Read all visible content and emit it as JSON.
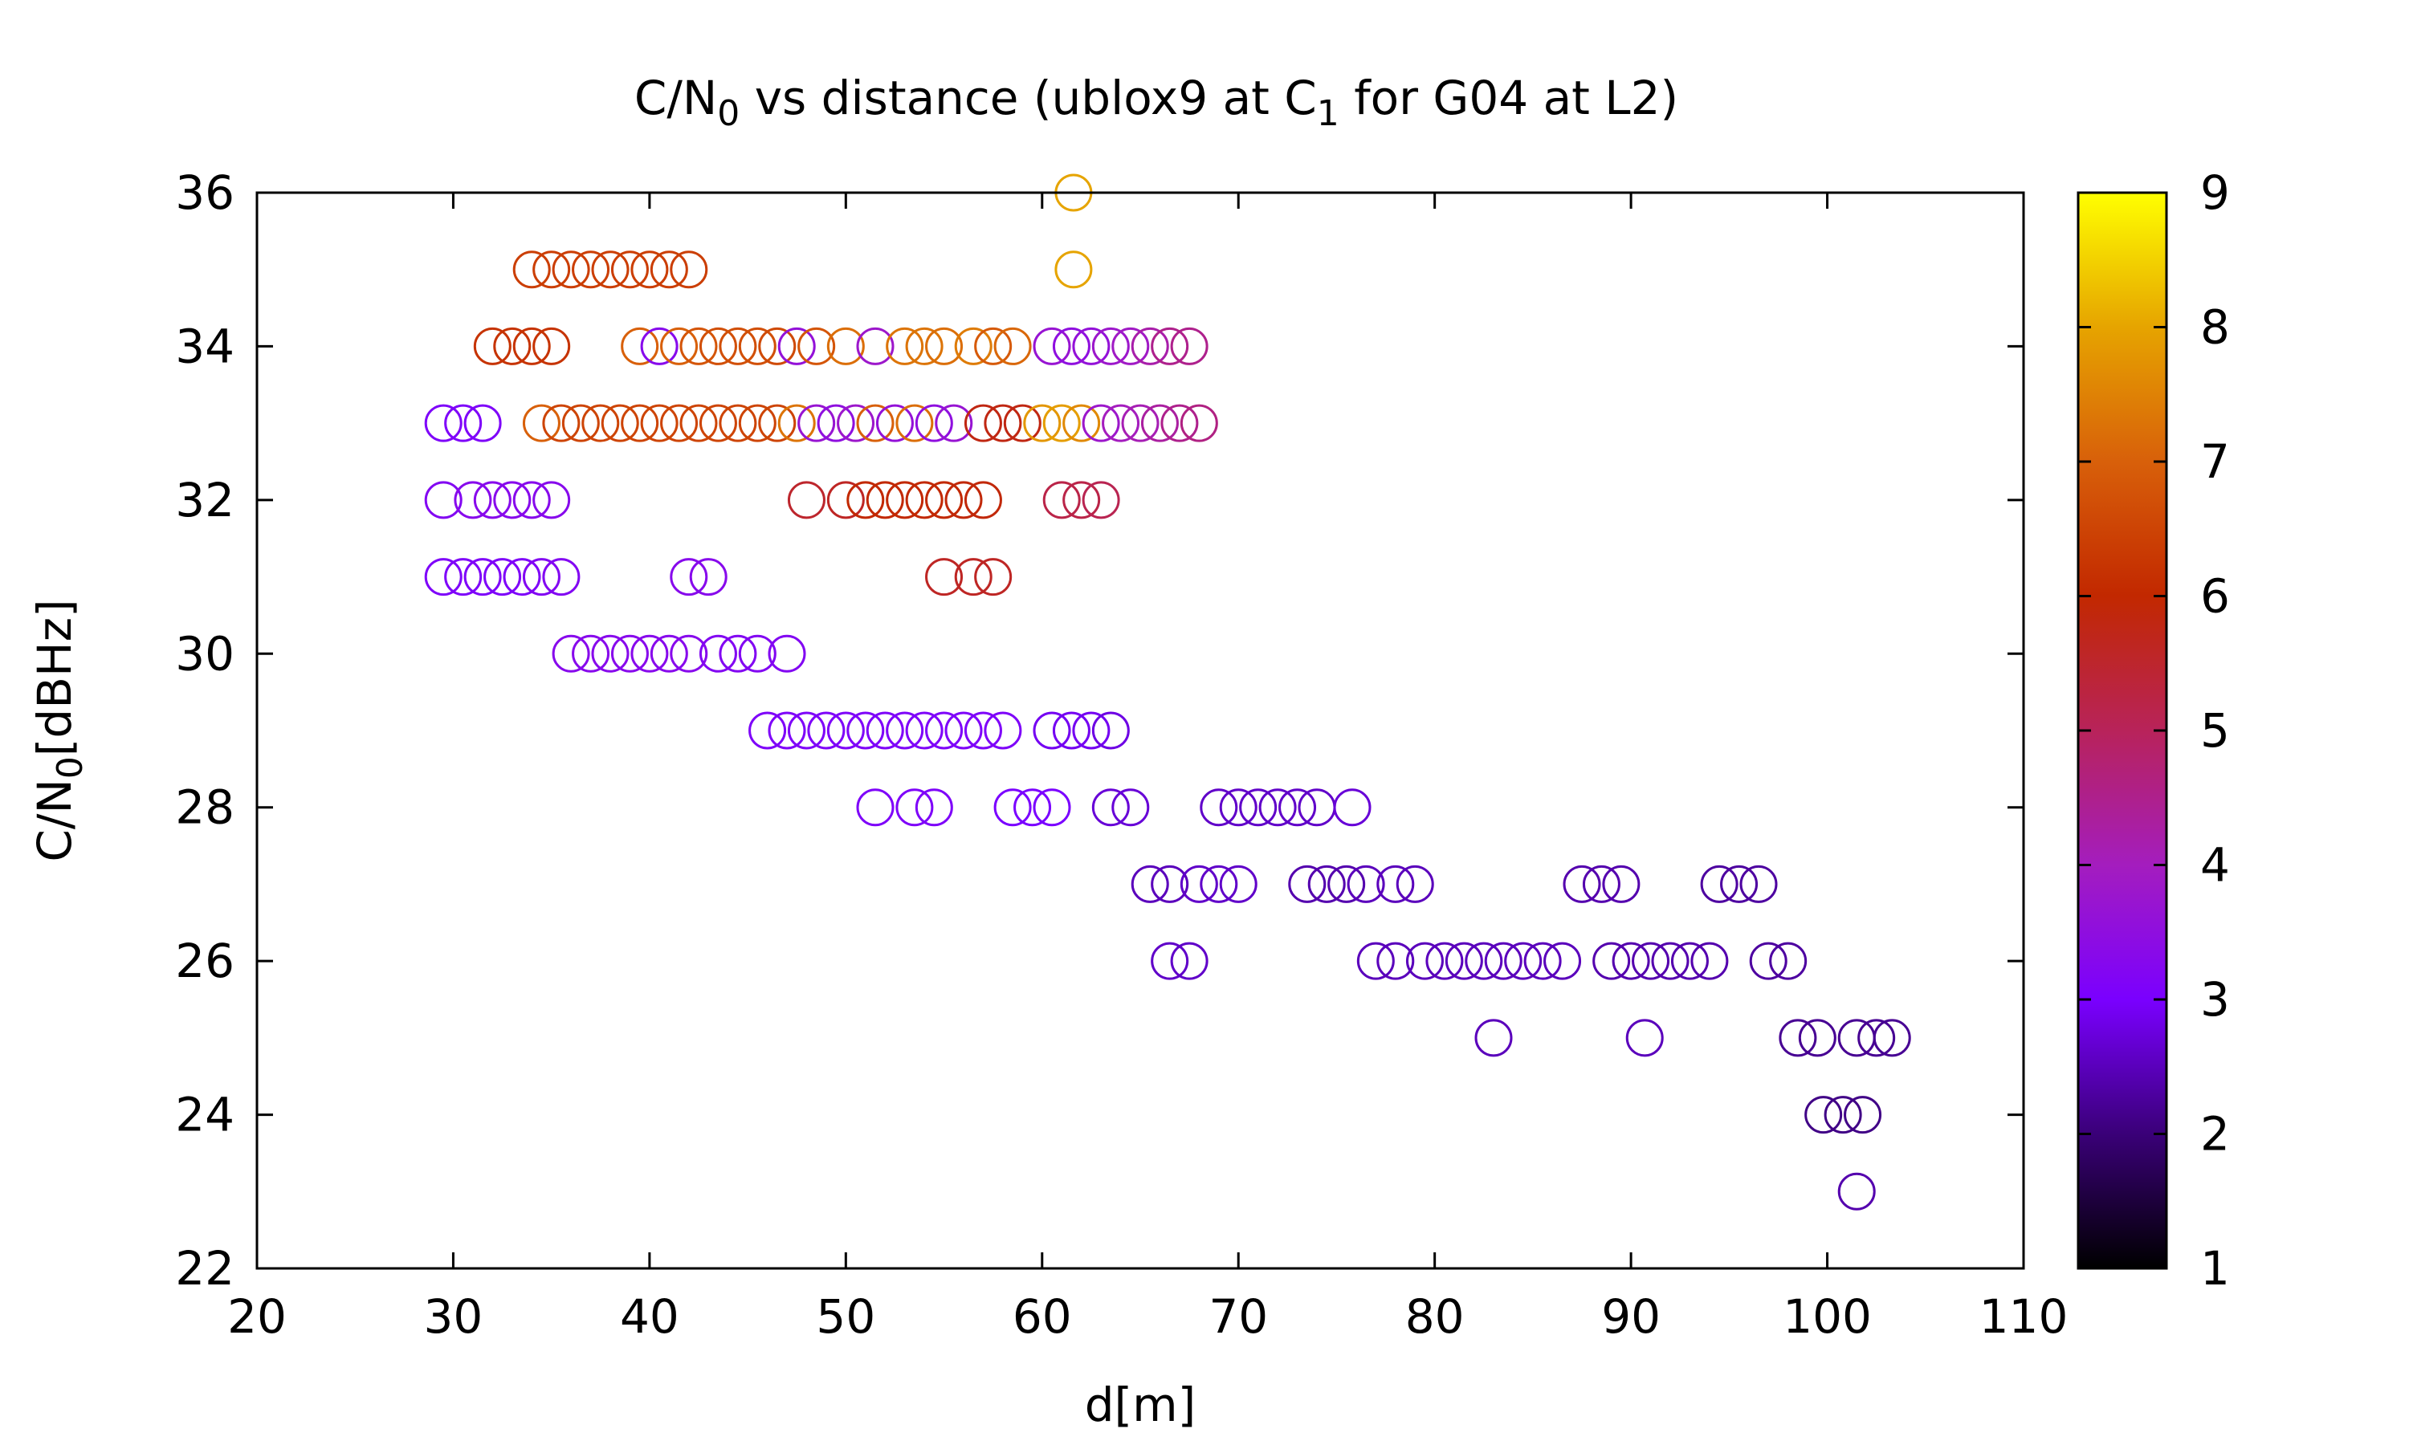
{
  "chart_data": {
    "type": "scatter",
    "title_parts": {
      "a": "C/N",
      "sub0": "0",
      "b": " vs distance (ublox9 at C",
      "sub1": "1",
      "c": " for G04 at L2)"
    },
    "xlabel": "d[m]",
    "ylabel_parts": {
      "a": "C/N",
      "sub": "0",
      "b": "[dBHz]"
    },
    "xlim": [
      20,
      110
    ],
    "ylim": [
      22,
      36
    ],
    "x_ticks": [
      "20",
      "30",
      "40",
      "50",
      "60",
      "70",
      "80",
      "90",
      "100",
      "110"
    ],
    "y_ticks": [
      "22",
      "24",
      "26",
      "28",
      "30",
      "32",
      "34",
      "36"
    ],
    "colorbar": {
      "range": [
        1,
        9
      ],
      "ticks": [
        "1",
        "2",
        "3",
        "4",
        "5",
        "6",
        "7",
        "8",
        "9"
      ],
      "palette": [
        "#000000",
        "#3a0078",
        "#7a00ff",
        "#a41dbe",
        "#b8235a",
        "#c22800",
        "#d8600a",
        "#e6a400",
        "#ffff00"
      ]
    },
    "grid": false,
    "marker": "open-circle",
    "points": [
      {
        "x": 61.6,
        "y": 36,
        "c": 8.0
      },
      {
        "x": 61.6,
        "y": 35,
        "c": 8.0
      },
      {
        "x": 34.0,
        "y": 35,
        "c": 6.4
      },
      {
        "x": 35.0,
        "y": 35,
        "c": 6.4
      },
      {
        "x": 36.0,
        "y": 35,
        "c": 6.4
      },
      {
        "x": 37.0,
        "y": 35,
        "c": 6.4
      },
      {
        "x": 38.0,
        "y": 35,
        "c": 6.4
      },
      {
        "x": 39.0,
        "y": 35,
        "c": 6.4
      },
      {
        "x": 40.0,
        "y": 35,
        "c": 6.4
      },
      {
        "x": 41.0,
        "y": 35,
        "c": 6.4
      },
      {
        "x": 42.0,
        "y": 35,
        "c": 6.4
      },
      {
        "x": 32.0,
        "y": 34,
        "c": 6.2
      },
      {
        "x": 33.0,
        "y": 34,
        "c": 6.2
      },
      {
        "x": 34.0,
        "y": 34,
        "c": 6.2
      },
      {
        "x": 35.0,
        "y": 34,
        "c": 6.2
      },
      {
        "x": 39.5,
        "y": 34,
        "c": 7.0
      },
      {
        "x": 40.5,
        "y": 34,
        "c": 3.3
      },
      {
        "x": 41.5,
        "y": 34,
        "c": 7.0
      },
      {
        "x": 42.5,
        "y": 34,
        "c": 6.8
      },
      {
        "x": 43.5,
        "y": 34,
        "c": 6.7
      },
      {
        "x": 44.5,
        "y": 34,
        "c": 6.7
      },
      {
        "x": 45.5,
        "y": 34,
        "c": 6.7
      },
      {
        "x": 46.5,
        "y": 34,
        "c": 6.6
      },
      {
        "x": 47.5,
        "y": 34,
        "c": 3.6
      },
      {
        "x": 48.5,
        "y": 34,
        "c": 6.8
      },
      {
        "x": 50.0,
        "y": 34,
        "c": 7.2
      },
      {
        "x": 51.5,
        "y": 34,
        "c": 3.8
      },
      {
        "x": 53.0,
        "y": 34,
        "c": 7.3
      },
      {
        "x": 54.0,
        "y": 34,
        "c": 7.3
      },
      {
        "x": 55.0,
        "y": 34,
        "c": 7.2
      },
      {
        "x": 56.5,
        "y": 34,
        "c": 7.4
      },
      {
        "x": 57.5,
        "y": 34,
        "c": 6.9
      },
      {
        "x": 58.5,
        "y": 34,
        "c": 7.1
      },
      {
        "x": 60.5,
        "y": 34,
        "c": 3.7
      },
      {
        "x": 61.5,
        "y": 34,
        "c": 3.5
      },
      {
        "x": 62.5,
        "y": 34,
        "c": 3.6
      },
      {
        "x": 63.5,
        "y": 34,
        "c": 3.8
      },
      {
        "x": 64.5,
        "y": 34,
        "c": 3.9
      },
      {
        "x": 65.5,
        "y": 34,
        "c": 4.2
      },
      {
        "x": 66.5,
        "y": 34,
        "c": 4.5
      },
      {
        "x": 67.5,
        "y": 34,
        "c": 4.5
      },
      {
        "x": 29.5,
        "y": 33,
        "c": 3.1
      },
      {
        "x": 30.5,
        "y": 33,
        "c": 3.1
      },
      {
        "x": 31.5,
        "y": 33,
        "c": 3.1
      },
      {
        "x": 34.5,
        "y": 33,
        "c": 7.0
      },
      {
        "x": 35.5,
        "y": 33,
        "c": 6.5
      },
      {
        "x": 36.5,
        "y": 33,
        "c": 6.5
      },
      {
        "x": 37.5,
        "y": 33,
        "c": 6.5
      },
      {
        "x": 38.5,
        "y": 33,
        "c": 6.5
      },
      {
        "x": 39.5,
        "y": 33,
        "c": 6.5
      },
      {
        "x": 40.5,
        "y": 33,
        "c": 6.5
      },
      {
        "x": 41.5,
        "y": 33,
        "c": 6.5
      },
      {
        "x": 42.5,
        "y": 33,
        "c": 6.5
      },
      {
        "x": 43.5,
        "y": 33,
        "c": 6.5
      },
      {
        "x": 44.5,
        "y": 33,
        "c": 6.5
      },
      {
        "x": 45.5,
        "y": 33,
        "c": 6.5
      },
      {
        "x": 46.5,
        "y": 33,
        "c": 6.5
      },
      {
        "x": 47.5,
        "y": 33,
        "c": 7.3
      },
      {
        "x": 48.5,
        "y": 33,
        "c": 3.7
      },
      {
        "x": 49.5,
        "y": 33,
        "c": 3.5
      },
      {
        "x": 50.5,
        "y": 33,
        "c": 3.8
      },
      {
        "x": 51.5,
        "y": 33,
        "c": 7.0
      },
      {
        "x": 52.5,
        "y": 33,
        "c": 3.6
      },
      {
        "x": 53.5,
        "y": 33,
        "c": 7.2
      },
      {
        "x": 54.5,
        "y": 33,
        "c": 3.5
      },
      {
        "x": 55.5,
        "y": 33,
        "c": 3.7
      },
      {
        "x": 57.0,
        "y": 33,
        "c": 5.8
      },
      {
        "x": 58.0,
        "y": 33,
        "c": 5.8
      },
      {
        "x": 59.0,
        "y": 33,
        "c": 5.8
      },
      {
        "x": 60.0,
        "y": 33,
        "c": 7.8
      },
      {
        "x": 61.0,
        "y": 33,
        "c": 7.9
      },
      {
        "x": 62.0,
        "y": 33,
        "c": 7.6
      },
      {
        "x": 63.0,
        "y": 33,
        "c": 3.8
      },
      {
        "x": 64.0,
        "y": 33,
        "c": 4.0
      },
      {
        "x": 65.0,
        "y": 33,
        "c": 4.1
      },
      {
        "x": 66.0,
        "y": 33,
        "c": 4.3
      },
      {
        "x": 67.0,
        "y": 33,
        "c": 4.5
      },
      {
        "x": 68.0,
        "y": 33,
        "c": 4.6
      },
      {
        "x": 29.5,
        "y": 32,
        "c": 3.2
      },
      {
        "x": 31.0,
        "y": 32,
        "c": 3.3
      },
      {
        "x": 32.0,
        "y": 32,
        "c": 3.3
      },
      {
        "x": 33.0,
        "y": 32,
        "c": 3.3
      },
      {
        "x": 34.0,
        "y": 32,
        "c": 3.3
      },
      {
        "x": 35.0,
        "y": 32,
        "c": 3.3
      },
      {
        "x": 48.0,
        "y": 32,
        "c": 5.5
      },
      {
        "x": 50.0,
        "y": 32,
        "c": 5.6
      },
      {
        "x": 51.0,
        "y": 32,
        "c": 6.0
      },
      {
        "x": 52.0,
        "y": 32,
        "c": 6.0
      },
      {
        "x": 53.0,
        "y": 32,
        "c": 6.0
      },
      {
        "x": 54.0,
        "y": 32,
        "c": 6.0
      },
      {
        "x": 55.0,
        "y": 32,
        "c": 6.0
      },
      {
        "x": 56.0,
        "y": 32,
        "c": 5.9
      },
      {
        "x": 57.0,
        "y": 32,
        "c": 5.9
      },
      {
        "x": 61.0,
        "y": 32,
        "c": 5.2
      },
      {
        "x": 62.0,
        "y": 32,
        "c": 5.2
      },
      {
        "x": 63.0,
        "y": 32,
        "c": 5.1
      },
      {
        "x": 29.5,
        "y": 31,
        "c": 3.1
      },
      {
        "x": 30.5,
        "y": 31,
        "c": 3.1
      },
      {
        "x": 31.5,
        "y": 31,
        "c": 3.1
      },
      {
        "x": 32.5,
        "y": 31,
        "c": 3.1
      },
      {
        "x": 33.5,
        "y": 31,
        "c": 3.1
      },
      {
        "x": 34.5,
        "y": 31,
        "c": 3.2
      },
      {
        "x": 35.5,
        "y": 31,
        "c": 3.2
      },
      {
        "x": 42.0,
        "y": 31,
        "c": 3.3
      },
      {
        "x": 43.0,
        "y": 31,
        "c": 3.3
      },
      {
        "x": 55.0,
        "y": 31,
        "c": 5.6
      },
      {
        "x": 56.5,
        "y": 31,
        "c": 5.6
      },
      {
        "x": 57.5,
        "y": 31,
        "c": 5.6
      },
      {
        "x": 36.0,
        "y": 30,
        "c": 3.3
      },
      {
        "x": 37.0,
        "y": 30,
        "c": 3.3
      },
      {
        "x": 38.0,
        "y": 30,
        "c": 3.3
      },
      {
        "x": 39.0,
        "y": 30,
        "c": 3.3
      },
      {
        "x": 40.0,
        "y": 30,
        "c": 3.3
      },
      {
        "x": 41.0,
        "y": 30,
        "c": 3.3
      },
      {
        "x": 42.0,
        "y": 30,
        "c": 3.3
      },
      {
        "x": 43.5,
        "y": 30,
        "c": 3.2
      },
      {
        "x": 44.5,
        "y": 30,
        "c": 3.2
      },
      {
        "x": 45.5,
        "y": 30,
        "c": 3.2
      },
      {
        "x": 47.0,
        "y": 30,
        "c": 3.2
      },
      {
        "x": 46.0,
        "y": 29,
        "c": 3.1
      },
      {
        "x": 47.0,
        "y": 29,
        "c": 3.1
      },
      {
        "x": 48.0,
        "y": 29,
        "c": 3.1
      },
      {
        "x": 49.0,
        "y": 29,
        "c": 3.1
      },
      {
        "x": 50.0,
        "y": 29,
        "c": 3.1
      },
      {
        "x": 51.0,
        "y": 29,
        "c": 3.1
      },
      {
        "x": 52.0,
        "y": 29,
        "c": 3.1
      },
      {
        "x": 53.0,
        "y": 29,
        "c": 3.1
      },
      {
        "x": 54.0,
        "y": 29,
        "c": 3.1
      },
      {
        "x": 55.0,
        "y": 29,
        "c": 3.1
      },
      {
        "x": 56.0,
        "y": 29,
        "c": 3.1
      },
      {
        "x": 57.0,
        "y": 29,
        "c": 3.1
      },
      {
        "x": 58.0,
        "y": 29,
        "c": 3.1
      },
      {
        "x": 60.5,
        "y": 29,
        "c": 2.9
      },
      {
        "x": 61.5,
        "y": 29,
        "c": 2.9
      },
      {
        "x": 62.5,
        "y": 29,
        "c": 2.9
      },
      {
        "x": 63.5,
        "y": 29,
        "c": 2.8
      },
      {
        "x": 51.5,
        "y": 28,
        "c": 3.1
      },
      {
        "x": 53.5,
        "y": 28,
        "c": 3.1
      },
      {
        "x": 54.5,
        "y": 28,
        "c": 3.1
      },
      {
        "x": 58.5,
        "y": 28,
        "c": 3.0
      },
      {
        "x": 59.5,
        "y": 28,
        "c": 3.0
      },
      {
        "x": 60.5,
        "y": 28,
        "c": 3.0
      },
      {
        "x": 63.5,
        "y": 28,
        "c": 2.7
      },
      {
        "x": 64.5,
        "y": 28,
        "c": 2.7
      },
      {
        "x": 69.0,
        "y": 28,
        "c": 2.6
      },
      {
        "x": 70.0,
        "y": 28,
        "c": 2.6
      },
      {
        "x": 71.0,
        "y": 28,
        "c": 2.6
      },
      {
        "x": 72.0,
        "y": 28,
        "c": 2.6
      },
      {
        "x": 73.0,
        "y": 28,
        "c": 2.6
      },
      {
        "x": 74.0,
        "y": 28,
        "c": 2.6
      },
      {
        "x": 75.8,
        "y": 28,
        "c": 2.7
      },
      {
        "x": 65.5,
        "y": 27,
        "c": 2.5
      },
      {
        "x": 66.5,
        "y": 27,
        "c": 2.5
      },
      {
        "x": 68.0,
        "y": 27,
        "c": 2.6
      },
      {
        "x": 69.0,
        "y": 27,
        "c": 2.6
      },
      {
        "x": 70.0,
        "y": 27,
        "c": 2.6
      },
      {
        "x": 73.5,
        "y": 27,
        "c": 2.4
      },
      {
        "x": 74.5,
        "y": 27,
        "c": 2.4
      },
      {
        "x": 75.5,
        "y": 27,
        "c": 2.4
      },
      {
        "x": 76.5,
        "y": 27,
        "c": 2.5
      },
      {
        "x": 78.0,
        "y": 27,
        "c": 2.5
      },
      {
        "x": 79.0,
        "y": 27,
        "c": 2.5
      },
      {
        "x": 87.5,
        "y": 27,
        "c": 2.4
      },
      {
        "x": 88.5,
        "y": 27,
        "c": 2.4
      },
      {
        "x": 89.5,
        "y": 27,
        "c": 2.4
      },
      {
        "x": 94.5,
        "y": 27,
        "c": 2.3
      },
      {
        "x": 95.5,
        "y": 27,
        "c": 2.3
      },
      {
        "x": 96.5,
        "y": 27,
        "c": 2.3
      },
      {
        "x": 66.5,
        "y": 26,
        "c": 2.6
      },
      {
        "x": 67.5,
        "y": 26,
        "c": 2.6
      },
      {
        "x": 77.0,
        "y": 26,
        "c": 2.5
      },
      {
        "x": 78.0,
        "y": 26,
        "c": 2.5
      },
      {
        "x": 79.5,
        "y": 26,
        "c": 2.5
      },
      {
        "x": 80.5,
        "y": 26,
        "c": 2.5
      },
      {
        "x": 81.5,
        "y": 26,
        "c": 2.5
      },
      {
        "x": 82.5,
        "y": 26,
        "c": 2.5
      },
      {
        "x": 83.5,
        "y": 26,
        "c": 2.5
      },
      {
        "x": 84.5,
        "y": 26,
        "c": 2.5
      },
      {
        "x": 85.5,
        "y": 26,
        "c": 2.5
      },
      {
        "x": 86.5,
        "y": 26,
        "c": 2.5
      },
      {
        "x": 89.0,
        "y": 26,
        "c": 2.4
      },
      {
        "x": 90.0,
        "y": 26,
        "c": 2.4
      },
      {
        "x": 91.0,
        "y": 26,
        "c": 2.4
      },
      {
        "x": 92.0,
        "y": 26,
        "c": 2.4
      },
      {
        "x": 93.0,
        "y": 26,
        "c": 2.4
      },
      {
        "x": 94.0,
        "y": 26,
        "c": 2.4
      },
      {
        "x": 97.0,
        "y": 26,
        "c": 2.3
      },
      {
        "x": 98.0,
        "y": 26,
        "c": 2.3
      },
      {
        "x": 83.0,
        "y": 25,
        "c": 2.5
      },
      {
        "x": 90.7,
        "y": 25,
        "c": 2.5
      },
      {
        "x": 98.5,
        "y": 25,
        "c": 2.2
      },
      {
        "x": 99.5,
        "y": 25,
        "c": 2.2
      },
      {
        "x": 101.5,
        "y": 25,
        "c": 2.2
      },
      {
        "x": 102.5,
        "y": 25,
        "c": 2.2
      },
      {
        "x": 103.3,
        "y": 25,
        "c": 2.2
      },
      {
        "x": 99.8,
        "y": 24,
        "c": 2.1
      },
      {
        "x": 100.8,
        "y": 24,
        "c": 2.1
      },
      {
        "x": 101.8,
        "y": 24,
        "c": 2.1
      },
      {
        "x": 101.5,
        "y": 23,
        "c": 2.4
      }
    ]
  }
}
